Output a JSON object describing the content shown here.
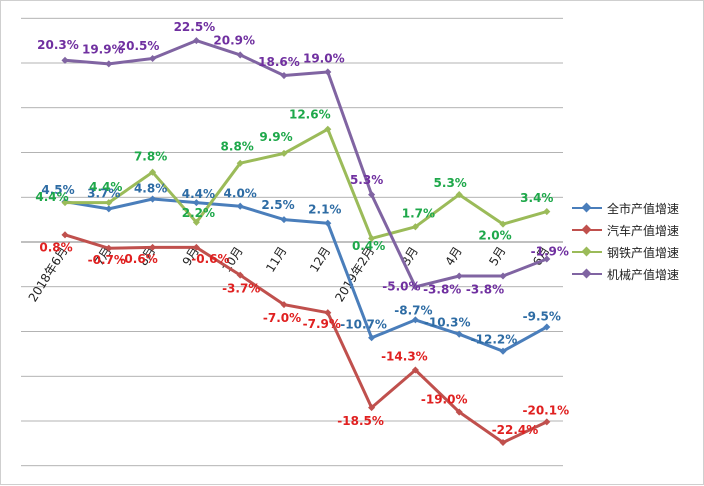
{
  "chart_data": {
    "type": "line",
    "title": "",
    "xlabel": "",
    "ylabel": "",
    "ylim": [
      -25,
      25
    ],
    "grid": true,
    "legend_position": "right",
    "categories": [
      "2018年6月",
      "7月",
      "8月",
      "9月",
      "10月",
      "11月",
      "12月",
      "2019年2月",
      "3月",
      "4月",
      "5月",
      "6月"
    ],
    "series": [
      {
        "name": "全市产值增速",
        "color": "#4a7ebb",
        "label_color": "#2e6ca4",
        "values": [
          4.5,
          3.7,
          4.8,
          4.4,
          4.0,
          2.5,
          2.1,
          -10.7,
          -8.7,
          -10.3,
          -12.2,
          -9.5
        ],
        "labels": [
          "4.5%",
          "3.7%",
          "4.8%",
          "4.4%",
          "4.0%",
          "2.5%",
          "2.1%",
          "-10.7%",
          "-8.7%",
          "-10.3%",
          "-12.2%",
          "-9.5%"
        ]
      },
      {
        "name": "汽车产值增速",
        "color": "#c0504d",
        "label_color": "#e02020",
        "values": [
          0.8,
          -0.7,
          -0.6,
          -0.6,
          -3.7,
          -7.0,
          -7.9,
          -18.5,
          -14.3,
          -19.0,
          -22.4,
          -20.1
        ],
        "labels": [
          "0.8%",
          "-0.7%",
          "-0.6%",
          "-0.6%",
          "-3.7%",
          "-7.0%",
          "-7.9%",
          "-18.5%",
          "-14.3%",
          "-19.0%",
          "-22.4%",
          "-20.1%"
        ]
      },
      {
        "name": "钢铁产值增速",
        "color": "#9bbb59",
        "label_color": "#1ea84a",
        "values": [
          4.4,
          4.4,
          7.8,
          2.2,
          8.8,
          9.9,
          12.6,
          0.4,
          1.7,
          5.3,
          2.0,
          3.4
        ],
        "labels": [
          "4.4%",
          "4.4%",
          "7.8%",
          "2.2%",
          "8.8%",
          "9.9%",
          "12.6%",
          "0.4%",
          "1.7%",
          "5.3%",
          "2.0%",
          "3.4%"
        ]
      },
      {
        "name": "机械产值增速",
        "color": "#8064a2",
        "label_color": "#7030a0",
        "values": [
          20.3,
          19.9,
          20.5,
          22.5,
          20.9,
          18.6,
          19.0,
          5.3,
          -5.0,
          -3.8,
          -3.8,
          -1.9
        ],
        "labels": [
          "20.3%",
          "19.9%",
          "20.5%",
          "22.5%",
          "20.9%",
          "18.6%",
          "19.0%",
          "5.3%",
          "-5.0%",
          "-3.8%",
          "-3.8%",
          "-1.9%"
        ]
      }
    ]
  }
}
